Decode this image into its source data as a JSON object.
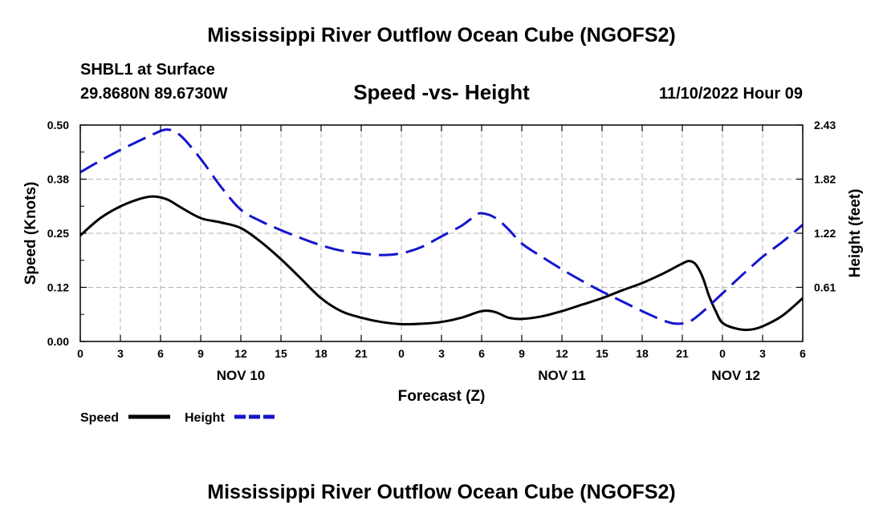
{
  "header": {
    "title": "Mississippi River Outflow Ocean Cube (NGOFS2)",
    "station": "SHBL1 at Surface",
    "coords": "29.8680N  89.6730W",
    "subtitle": "Speed -vs- Height",
    "datetime": "11/10/2022 Hour 09"
  },
  "footer": {
    "title": "Mississippi River Outflow Ocean Cube (NGOFS2)"
  },
  "chart_data": {
    "type": "line",
    "title": "Speed -vs- Height",
    "xlabel": "Forecast (Z)",
    "ylabel_left": "Speed (Knots)",
    "ylabel_right": "Height (feet)",
    "x_unit": "hours since 00Z Nov 10",
    "xlim": [
      0,
      54
    ],
    "ylim_left": [
      0,
      0.5
    ],
    "ylim_right": [
      0.0,
      2.43
    ],
    "x_ticks": [
      {
        "x": 0,
        "label": "0"
      },
      {
        "x": 3,
        "label": "3"
      },
      {
        "x": 6,
        "label": "6"
      },
      {
        "x": 9,
        "label": "9"
      },
      {
        "x": 12,
        "label": "12"
      },
      {
        "x": 15,
        "label": "15"
      },
      {
        "x": 18,
        "label": "18"
      },
      {
        "x": 21,
        "label": "21"
      },
      {
        "x": 24,
        "label": "0"
      },
      {
        "x": 27,
        "label": "3"
      },
      {
        "x": 30,
        "label": "6"
      },
      {
        "x": 33,
        "label": "9"
      },
      {
        "x": 36,
        "label": "12"
      },
      {
        "x": 39,
        "label": "15"
      },
      {
        "x": 42,
        "label": "18"
      },
      {
        "x": 45,
        "label": "21"
      },
      {
        "x": 48,
        "label": "0"
      },
      {
        "x": 51,
        "label": "3"
      },
      {
        "x": 54,
        "label": "6"
      }
    ],
    "day_labels": [
      {
        "x": 12,
        "label": "NOV 10"
      },
      {
        "x": 36,
        "label": "NOV 11"
      },
      {
        "x": 49,
        "label": "NOV 12"
      }
    ],
    "y_ticks_left": [
      {
        "y": 0.0,
        "label": "0.00"
      },
      {
        "y": 0.125,
        "label": "0.12"
      },
      {
        "y": 0.25,
        "label": "0.25"
      },
      {
        "y": 0.375,
        "label": "0.38"
      },
      {
        "y": 0.5,
        "label": "0.50"
      }
    ],
    "y_ticks_right": [
      {
        "y": 0.6075,
        "label": "0.61"
      },
      {
        "y": 1.215,
        "label": "1.22"
      },
      {
        "y": 1.8225,
        "label": "1.82"
      },
      {
        "y": 2.43,
        "label": "2.43"
      }
    ],
    "series": [
      {
        "name": "Speed",
        "axis": "left",
        "color": "#000000",
        "dash": "solid",
        "x": [
          0,
          1.5,
          3,
          4.5,
          5.5,
          6.5,
          7.5,
          9,
          10.5,
          12,
          13.5,
          15,
          16.5,
          18,
          19.5,
          21,
          22.5,
          24,
          25.5,
          27,
          28.5,
          30,
          31,
          32,
          33,
          34.5,
          36,
          37.5,
          39,
          40.5,
          42,
          43.5,
          44.5,
          45,
          45.5,
          46,
          46.5,
          47,
          47.5,
          48,
          49,
          50,
          51,
          52.5,
          54
        ],
        "y": [
          0.245,
          0.285,
          0.312,
          0.33,
          0.335,
          0.328,
          0.31,
          0.285,
          0.275,
          0.262,
          0.23,
          0.19,
          0.145,
          0.1,
          0.07,
          0.055,
          0.045,
          0.04,
          0.041,
          0.045,
          0.055,
          0.07,
          0.068,
          0.055,
          0.052,
          0.058,
          0.07,
          0.085,
          0.1,
          0.118,
          0.135,
          0.156,
          0.172,
          0.18,
          0.186,
          0.178,
          0.15,
          0.105,
          0.07,
          0.043,
          0.03,
          0.027,
          0.035,
          0.06,
          0.1
        ]
      },
      {
        "name": "Height",
        "axis": "right",
        "color": "#1515cc",
        "dash": "dashed",
        "x": [
          0,
          1.5,
          3,
          4.5,
          5.5,
          6.5,
          7.5,
          9,
          10.5,
          12,
          13.5,
          15,
          16.5,
          18,
          19.5,
          21,
          22.5,
          24,
          25.5,
          27,
          28.5,
          29.5,
          30,
          31,
          32,
          33,
          34.5,
          36,
          37.5,
          39,
          40.5,
          42,
          43.5,
          44.5,
          45.5,
          46.5,
          47.5,
          48.5,
          49.5,
          51,
          52.5,
          54
        ],
        "y": [
          1.9,
          2.03,
          2.15,
          2.26,
          2.33,
          2.38,
          2.31,
          2.05,
          1.74,
          1.48,
          1.35,
          1.25,
          1.16,
          1.08,
          1.02,
          0.99,
          0.97,
          0.99,
          1.06,
          1.18,
          1.3,
          1.41,
          1.44,
          1.39,
          1.26,
          1.1,
          0.95,
          0.81,
          0.68,
          0.56,
          0.45,
          0.34,
          0.24,
          0.2,
          0.22,
          0.33,
          0.47,
          0.61,
          0.75,
          0.95,
          1.12,
          1.31
        ]
      }
    ],
    "legend": {
      "position": "bottom-left",
      "entries": [
        "Speed",
        "Height"
      ]
    }
  }
}
